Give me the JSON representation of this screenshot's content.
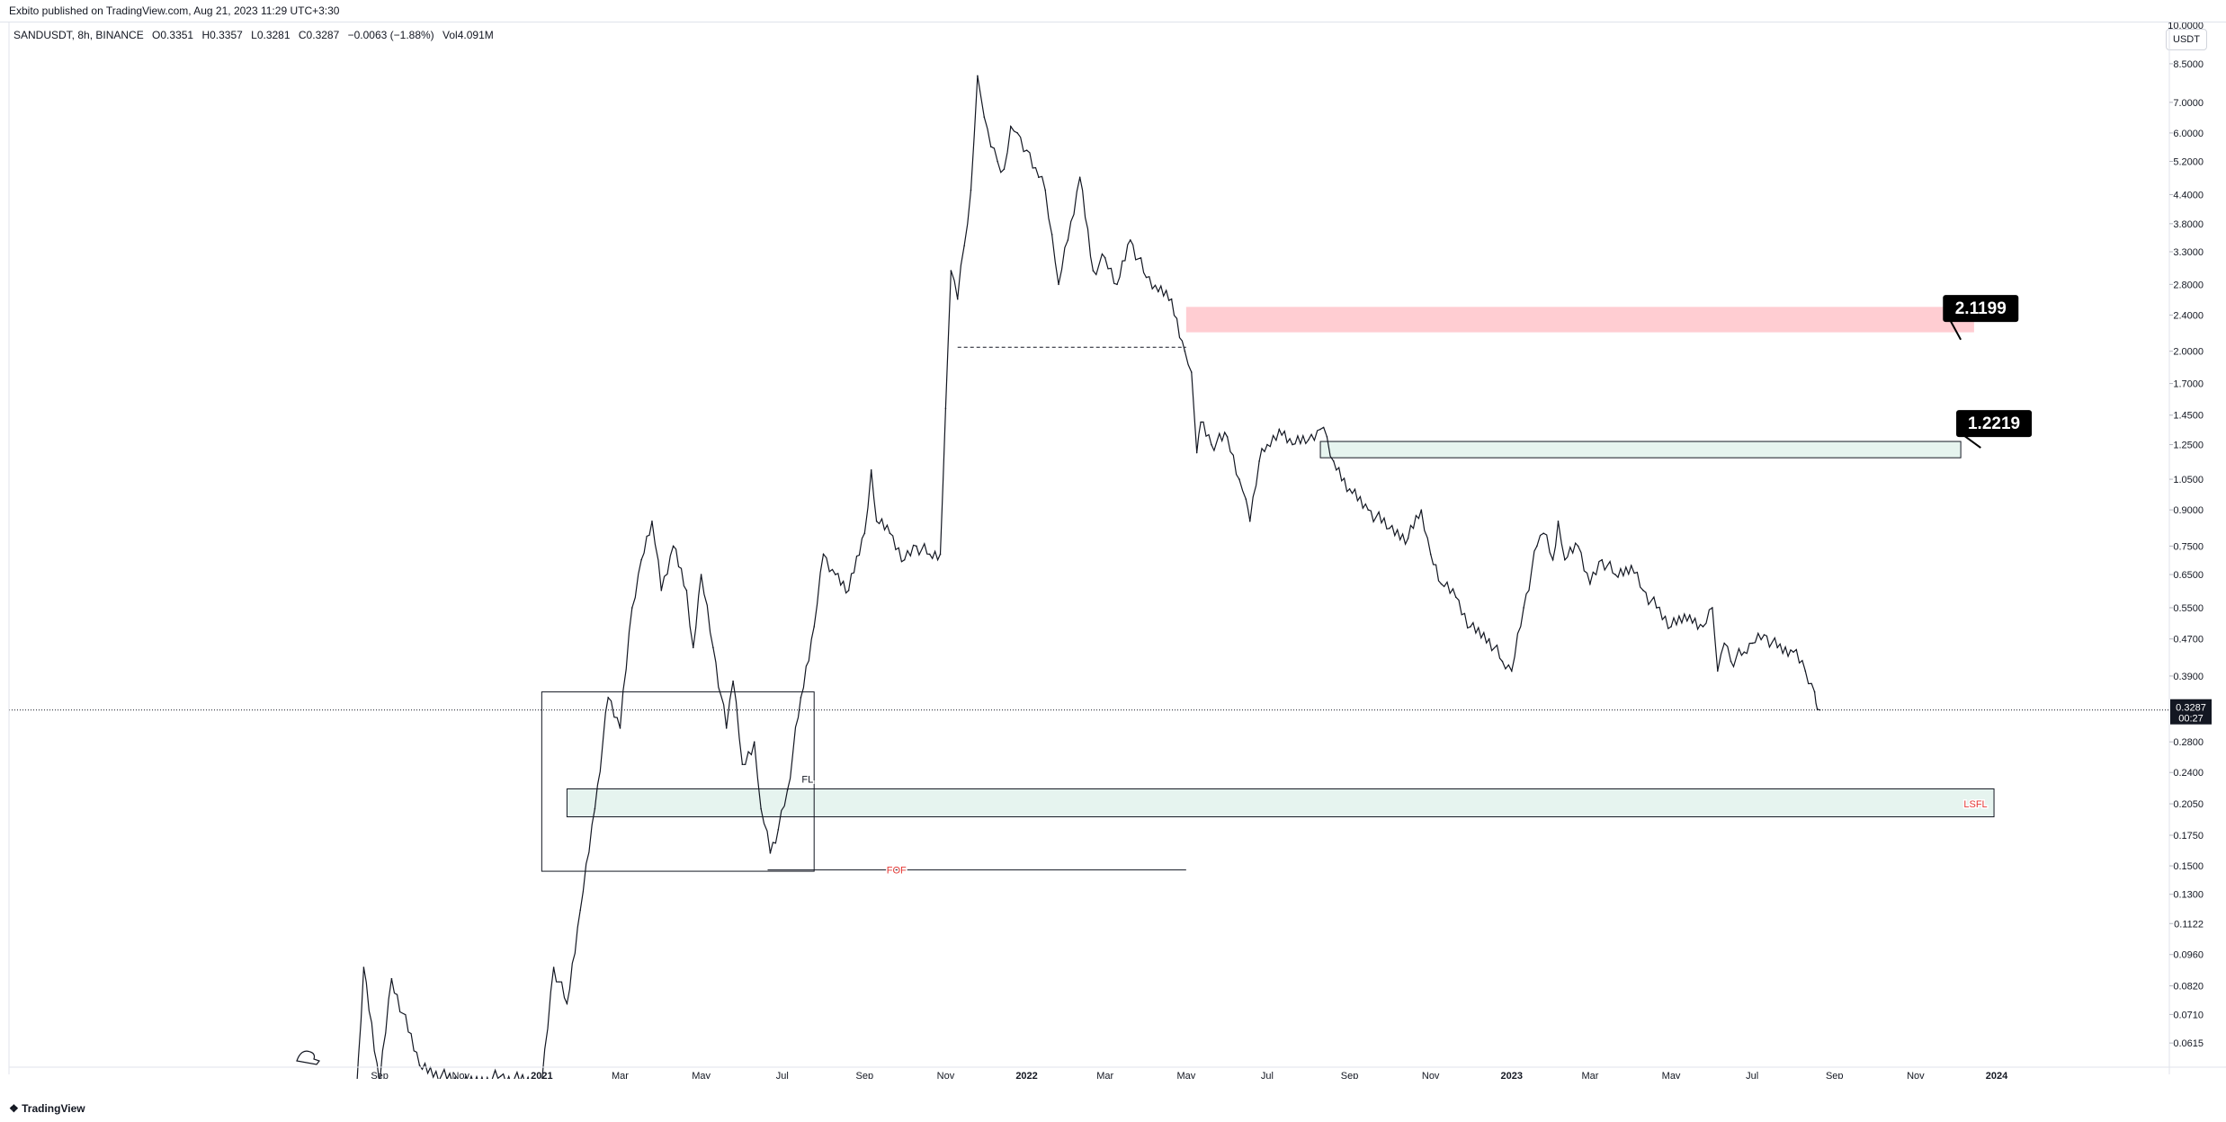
{
  "header": {
    "published_text": "Exbito published on TradingView.com, Aug 21, 2023 11:29 UTC+3:30"
  },
  "legend": {
    "symbol": "SANDUSDT, 8h, BINANCE",
    "open": "O0.3351",
    "high": "H0.3357",
    "low": "L0.3281",
    "close": "C0.3287",
    "change": "−0.0063 (−1.88%)",
    "volume": "Vol4.091M"
  },
  "currency_button": "USDT",
  "footer": {
    "logo_text": "TradingView"
  },
  "colors": {
    "candle": "#131722",
    "resistance_zone_fill": "#ffcdd2",
    "support_zone_fill": "#e6f4ef",
    "marker_text": "#e53935",
    "label_bg": "#000000",
    "label_text": "#ffffff",
    "grid": "#f0f3fa"
  },
  "chart_data": {
    "type": "line",
    "title": "",
    "xlabel": "",
    "ylabel": "",
    "y_scale": "log",
    "ylim": [
      0.0575,
      10.0
    ],
    "x_ticks": [
      "Sep",
      "Nov",
      "2021",
      "Mar",
      "May",
      "Jul",
      "Sep",
      "Nov",
      "2022",
      "Mar",
      "May",
      "Jul",
      "Sep",
      "Nov",
      "2023",
      "Mar",
      "May",
      "Jul",
      "Sep",
      "Nov",
      "2024"
    ],
    "y_ticks": [
      "8.5000",
      "7.0000",
      "6.0000",
      "5.2000",
      "4.4000",
      "3.8000",
      "3.3000",
      "2.8000",
      "2.4000",
      "2.0000",
      "1.7000",
      "1.4500",
      "1.2500",
      "1.0500",
      "0.9000",
      "0.7500",
      "0.6500",
      "0.5500",
      "0.4700",
      "0.3900",
      "0.2800",
      "0.2400",
      "0.2050",
      "0.1750",
      "0.1500",
      "0.1300",
      "0.1122",
      "0.0960",
      "0.0820",
      "0.0710",
      "0.0615"
    ],
    "series": [
      {
        "x": [
          "2020-08-14",
          "2020-08-20",
          "2020-09-01",
          "2020-09-10",
          "2020-10-01",
          "2020-11-01",
          "2020-12-01",
          "2021-01-01",
          "2021-01-10",
          "2021-01-20",
          "2021-01-30",
          "2021-02-10",
          "2021-02-20",
          "2021-03-01",
          "2021-03-10",
          "2021-03-17",
          "2021-03-25",
          "2021-04-01",
          "2021-04-10",
          "2021-04-20",
          "2021-04-25",
          "2021-05-01",
          "2021-05-10",
          "2021-05-20",
          "2021-05-25",
          "2021-06-01",
          "2021-06-10",
          "2021-06-15",
          "2021-06-22",
          "2021-06-28",
          "2021-07-05",
          "2021-07-15",
          "2021-07-25",
          "2021-08-01",
          "2021-08-10",
          "2021-08-20",
          "2021-09-01",
          "2021-09-06",
          "2021-09-10",
          "2021-09-20",
          "2021-10-01",
          "2021-10-10",
          "2021-10-20",
          "2021-10-28",
          "2021-11-01",
          "2021-11-05",
          "2021-11-10",
          "2021-11-15",
          "2021-11-20",
          "2021-11-25",
          "2021-11-30",
          "2021-12-05",
          "2021-12-10",
          "2021-12-15",
          "2021-12-20",
          "2021-12-25",
          "2022-01-01",
          "2022-01-10",
          "2022-01-15",
          "2022-01-20",
          "2022-01-25",
          "2022-02-01",
          "2022-02-10",
          "2022-02-20",
          "2022-03-01",
          "2022-03-10",
          "2022-03-20",
          "2022-04-01",
          "2022-04-10",
          "2022-04-20",
          "2022-04-30",
          "2022-05-05",
          "2022-05-09",
          "2022-05-12",
          "2022-05-20",
          "2022-06-01",
          "2022-06-10",
          "2022-06-15",
          "2022-06-18",
          "2022-06-25",
          "2022-07-01",
          "2022-07-10",
          "2022-07-20",
          "2022-08-01",
          "2022-08-10",
          "2022-08-15",
          "2022-08-20",
          "2022-09-01",
          "2022-09-15",
          "2022-10-01",
          "2022-10-15",
          "2022-10-25",
          "2022-11-01",
          "2022-11-09",
          "2022-11-20",
          "2022-12-01",
          "2022-12-15",
          "2022-12-25",
          "2023-01-01",
          "2023-01-10",
          "2023-01-20",
          "2023-01-25",
          "2023-02-01",
          "2023-02-05",
          "2023-02-10",
          "2023-02-20",
          "2023-03-01",
          "2023-03-10",
          "2023-03-20",
          "2023-04-01",
          "2023-04-10",
          "2023-04-20",
          "2023-05-01",
          "2023-05-15",
          "2023-05-25",
          "2023-06-01",
          "2023-06-05",
          "2023-06-10",
          "2023-06-15",
          "2023-06-25",
          "2023-07-01",
          "2023-07-10",
          "2023-07-20",
          "2023-08-01",
          "2023-08-10",
          "2023-08-17",
          "2023-08-19",
          "2023-08-21"
        ],
        "y": [
          0.045,
          0.09,
          0.05,
          0.085,
          0.055,
          0.05,
          0.052,
          0.05,
          0.09,
          0.075,
          0.12,
          0.2,
          0.35,
          0.3,
          0.55,
          0.7,
          0.85,
          0.6,
          0.75,
          0.6,
          0.45,
          0.65,
          0.45,
          0.3,
          0.38,
          0.25,
          0.28,
          0.2,
          0.16,
          0.18,
          0.22,
          0.35,
          0.5,
          0.72,
          0.65,
          0.6,
          0.8,
          1.1,
          0.85,
          0.8,
          0.7,
          0.75,
          0.72,
          0.72,
          1.5,
          3.0,
          2.6,
          3.4,
          4.5,
          8.0,
          6.5,
          5.6,
          5.2,
          5.0,
          6.2,
          6.0,
          5.5,
          4.8,
          4.5,
          3.6,
          2.8,
          3.5,
          4.8,
          3.0,
          3.2,
          2.8,
          3.5,
          2.9,
          2.7,
          2.6,
          2.0,
          1.8,
          1.2,
          1.4,
          1.25,
          1.3,
          1.05,
          0.95,
          0.85,
          1.15,
          1.25,
          1.35,
          1.25,
          1.28,
          1.35,
          1.3,
          1.15,
          1.0,
          0.9,
          0.82,
          0.78,
          0.9,
          0.72,
          0.62,
          0.58,
          0.5,
          0.47,
          0.42,
          0.4,
          0.55,
          0.75,
          0.8,
          0.7,
          0.85,
          0.7,
          0.75,
          0.62,
          0.7,
          0.65,
          0.68,
          0.6,
          0.55,
          0.5,
          0.53,
          0.5,
          0.55,
          0.4,
          0.46,
          0.42,
          0.44,
          0.46,
          0.48,
          0.45,
          0.44,
          0.4,
          0.36,
          0.33,
          0.3287
        ]
      }
    ],
    "zones": [
      {
        "name": "resistance",
        "from": "2022-05-01",
        "to": "2023-12-15",
        "low": 2.2,
        "high": 2.5,
        "style": "red"
      },
      {
        "name": "resistance-2",
        "from": "2022-08-10",
        "to": "2023-12-05",
        "low": 1.17,
        "high": 1.27,
        "style": "green"
      },
      {
        "name": "lsfl",
        "from": "2021-01-20",
        "to": "2023-12-30",
        "low": 0.192,
        "high": 0.221,
        "style": "green"
      }
    ],
    "boxes": [
      {
        "name": "range-box",
        "from": "2021-01-01",
        "to": "2021-07-25",
        "low": 0.146,
        "high": 0.36
      }
    ],
    "lines": [
      {
        "name": "fof-line",
        "from": "2021-06-20",
        "to": "2022-05-01",
        "y": 0.147,
        "dashed": false
      },
      {
        "name": "dashed-level",
        "from": "2021-11-10",
        "to": "2022-05-01",
        "y": 2.04,
        "dashed": true
      }
    ],
    "annotations": [
      {
        "text": "FL",
        "x": "2021-07-20",
        "y": 0.232
      },
      {
        "text": "FOF",
        "x": "2021-09-25",
        "y": 0.147,
        "color": "red"
      },
      {
        "text": "LSFL",
        "x": "2023-12-25",
        "y": 0.205,
        "color": "red"
      }
    ],
    "callouts": [
      {
        "text": "2.1199",
        "x": "2023-12-20",
        "y": 2.48,
        "pointer_x": "2023-12-05",
        "pointer_y": 2.12
      },
      {
        "text": "1.2219",
        "x": "2023-12-30",
        "y": 1.39,
        "pointer_x": "2023-12-20",
        "pointer_y": 1.23
      }
    ],
    "price_line": {
      "value": 0.3287,
      "label": "0.3287",
      "countdown": "00:27"
    },
    "top_tick_partial": "10.0000"
  }
}
